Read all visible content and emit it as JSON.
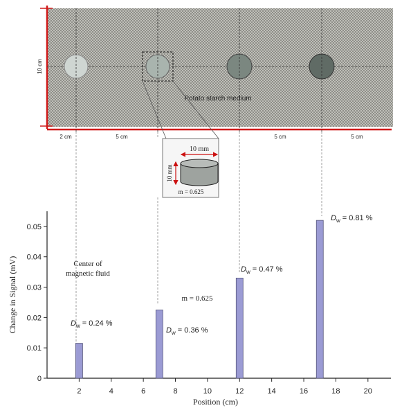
{
  "figure": {
    "medium_label": "Potato starch medium",
    "height_label": "10 cm",
    "spacing_labels": [
      "2 cm",
      "5 cm",
      "5 cm",
      "5 cm"
    ],
    "cylinder": {
      "width_label": "10 mm",
      "height_label": "10 mm",
      "m_label": "m = 0.625"
    }
  },
  "chart_data": {
    "type": "bar",
    "x": [
      2,
      7,
      12,
      17
    ],
    "values": [
      0.0115,
      0.0225,
      0.033,
      0.052
    ],
    "xlabel": "Position (cm)",
    "ylabel": "Change in Signal (mV)",
    "xlim": [
      0,
      21
    ],
    "ylim": [
      0,
      0.055
    ],
    "xticks": [
      2,
      4,
      6,
      8,
      10,
      12,
      14,
      16,
      18,
      20
    ],
    "yticks": [
      0,
      0.01,
      0.02,
      0.03,
      0.04,
      0.05
    ],
    "ytick_labels": [
      "0",
      "0.01",
      "0.02",
      "0.03",
      "0.04",
      "0.05"
    ],
    "bar_color": "#9b9bd4",
    "annotations": [
      {
        "var": "D",
        "sub": "w",
        "text": " = 0.24 %"
      },
      {
        "var": "D",
        "sub": "w",
        "text": " = 0.36 %"
      },
      {
        "var": "D",
        "sub": "w",
        "text": " = 0.47 %"
      },
      {
        "var": "D",
        "sub": "w",
        "text": " = 0.81 %"
      }
    ],
    "note_center": "Center of magnetic fluid",
    "note_center_lines": [
      "Center of",
      "magnetic fluid"
    ],
    "note_m": "m = 0.625"
  }
}
